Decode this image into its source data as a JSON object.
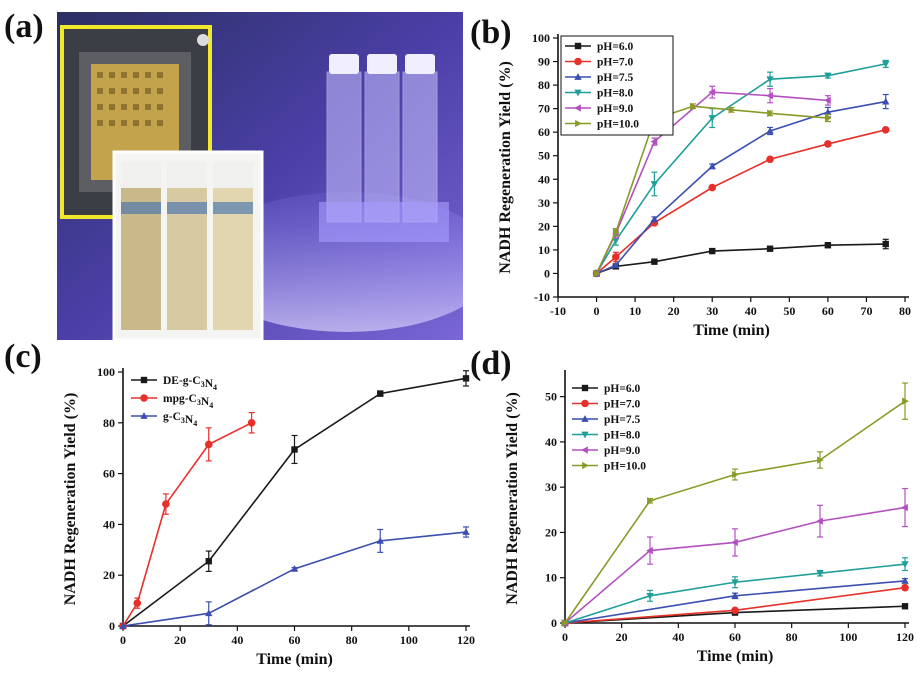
{
  "panel_labels": [
    "(a)",
    "(b)",
    "(c)",
    "(d)"
  ],
  "photo": {
    "description_icon": "photo-icon",
    "inset_colors": [
      "#c9b98a",
      "#d7c9a0",
      "#e2d6b0"
    ]
  },
  "chart_data": [
    {
      "panel": "(b)",
      "type": "line",
      "xlabel": "Time (min)",
      "ylabel": "NADH Regeneration Yield (%)",
      "xlim": [
        -10,
        80
      ],
      "ylim": [
        -10,
        100
      ],
      "xticks": [
        -10,
        0,
        10,
        20,
        30,
        40,
        50,
        60,
        70,
        80
      ],
      "yticks": [
        -10,
        0,
        10,
        20,
        30,
        40,
        50,
        60,
        70,
        80,
        90,
        100
      ],
      "legend_position": "top-left",
      "series": [
        {
          "name": "pH=6.0",
          "color": "#1a1a1a",
          "marker": "square",
          "x": [
            0,
            5,
            15,
            30,
            45,
            60,
            75
          ],
          "y": [
            0,
            3,
            5,
            9.5,
            10.5,
            12,
            12.5
          ],
          "err": [
            0,
            0.5,
            0.5,
            0.5,
            0.5,
            1,
            2
          ]
        },
        {
          "name": "pH=7.0",
          "color": "#e8302a",
          "marker": "circle",
          "x": [
            0,
            5,
            15,
            30,
            45,
            60,
            75
          ],
          "y": [
            0,
            7,
            21.5,
            36.5,
            48.5,
            55,
            61
          ],
          "err": [
            0,
            2,
            1,
            0.5,
            0.5,
            0.5,
            0.5
          ]
        },
        {
          "name": "pH=7.5",
          "color": "#3a4fb0",
          "marker": "triangle-up",
          "x": [
            0,
            5,
            15,
            30,
            45,
            60,
            75
          ],
          "y": [
            0,
            3.5,
            23,
            45.5,
            60.5,
            68.5,
            73
          ],
          "err": [
            0,
            0.5,
            1,
            1,
            1.5,
            2,
            3
          ]
        },
        {
          "name": "pH=8.0",
          "color": "#1f9e9a",
          "marker": "triangle-down",
          "x": [
            0,
            5,
            15,
            30,
            45,
            60,
            75
          ],
          "y": [
            0,
            14,
            38,
            66,
            82.5,
            84,
            89
          ],
          "err": [
            0,
            2,
            5,
            4,
            3,
            1,
            1.5
          ]
        },
        {
          "name": "pH=9.0",
          "color": "#b44fc0",
          "marker": "triangle-left",
          "x": [
            0,
            5,
            15,
            30,
            45,
            60
          ],
          "y": [
            0,
            17,
            56,
            77,
            75.5,
            73.5
          ],
          "err": [
            0,
            2,
            1.5,
            2.5,
            3,
            2
          ]
        },
        {
          "name": "pH=10.0",
          "color": "#8a9a28",
          "marker": "triangle-right",
          "x": [
            0,
            5,
            15,
            25,
            35,
            45,
            60
          ],
          "y": [
            0,
            17.5,
            65.5,
            71,
            69.5,
            68,
            66
          ],
          "err": [
            0,
            1.5,
            1,
            1,
            1,
            1,
            1.5
          ]
        }
      ]
    },
    {
      "panel": "(c)",
      "type": "line",
      "xlabel": "Time (min)",
      "ylabel": "NADH Regeneration Yield (%)",
      "xlim": [
        0,
        120
      ],
      "ylim": [
        0,
        100
      ],
      "xticks": [
        0,
        20,
        40,
        60,
        80,
        100,
        120
      ],
      "yticks": [
        0,
        20,
        40,
        60,
        80,
        100
      ],
      "legend_position": "top-left",
      "series": [
        {
          "name": "DE-g-C3N4",
          "color": "#1a1a1a",
          "marker": "square",
          "x": [
            0,
            30,
            60,
            90,
            120
          ],
          "y": [
            0,
            25.5,
            69.5,
            91.5,
            97.5
          ],
          "err": [
            0,
            4,
            5.5,
            1,
            3
          ]
        },
        {
          "name": "mpg-C3N4",
          "color": "#e8302a",
          "marker": "circle",
          "x": [
            0,
            5,
            15,
            30,
            45
          ],
          "y": [
            0,
            9,
            48,
            71.5,
            80
          ],
          "err": [
            0,
            2,
            4,
            6.5,
            4
          ]
        },
        {
          "name": "g-C3N4",
          "color": "#3a4fb0",
          "marker": "triangle-up",
          "x": [
            0,
            30,
            60,
            90,
            120
          ],
          "y": [
            0,
            5,
            22.5,
            33.5,
            37
          ],
          "err": [
            0,
            4.5,
            0.5,
            4.5,
            2
          ]
        }
      ]
    },
    {
      "panel": "(d)",
      "type": "line",
      "xlabel": "Time (min)",
      "ylabel": "NADH Regeneration Yield (%)",
      "xlim": [
        0,
        120
      ],
      "ylim": [
        0,
        55
      ],
      "xticks": [
        0,
        20,
        40,
        60,
        80,
        100,
        120
      ],
      "yticks": [
        0,
        10,
        20,
        30,
        40,
        50
      ],
      "legend_position": "top-left",
      "series": [
        {
          "name": "pH=6.0",
          "color": "#1a1a1a",
          "marker": "square",
          "x": [
            0,
            60,
            120
          ],
          "y": [
            0,
            2.3,
            3.7
          ],
          "err": [
            0,
            0.3,
            0.3
          ]
        },
        {
          "name": "pH=7.0",
          "color": "#e8302a",
          "marker": "circle",
          "x": [
            0,
            60,
            120
          ],
          "y": [
            0,
            2.8,
            7.8
          ],
          "err": [
            0,
            0.3,
            0.5
          ]
        },
        {
          "name": "pH=7.5",
          "color": "#3a4fb0",
          "marker": "triangle-up",
          "x": [
            0,
            60,
            120
          ],
          "y": [
            0,
            6,
            9.3
          ],
          "err": [
            0,
            0.6,
            0.5
          ]
        },
        {
          "name": "pH=8.0",
          "color": "#1f9e9a",
          "marker": "triangle-down",
          "x": [
            0,
            30,
            60,
            90,
            120
          ],
          "y": [
            0,
            6,
            9,
            11,
            13
          ],
          "err": [
            0,
            1.2,
            1.2,
            0.6,
            1.4
          ]
        },
        {
          "name": "pH=9.0",
          "color": "#b44fc0",
          "marker": "triangle-left",
          "x": [
            0,
            30,
            60,
            90,
            120
          ],
          "y": [
            0,
            16,
            17.8,
            22.5,
            25.5
          ],
          "err": [
            0,
            3,
            3,
            3.5,
            4.2
          ]
        },
        {
          "name": "pH=10.0",
          "color": "#8a9a28",
          "marker": "triangle-right",
          "x": [
            0,
            30,
            60,
            90,
            120
          ],
          "y": [
            0,
            27,
            32.8,
            36,
            49
          ],
          "err": [
            0,
            0.5,
            1.2,
            1.8,
            4
          ]
        }
      ]
    }
  ]
}
